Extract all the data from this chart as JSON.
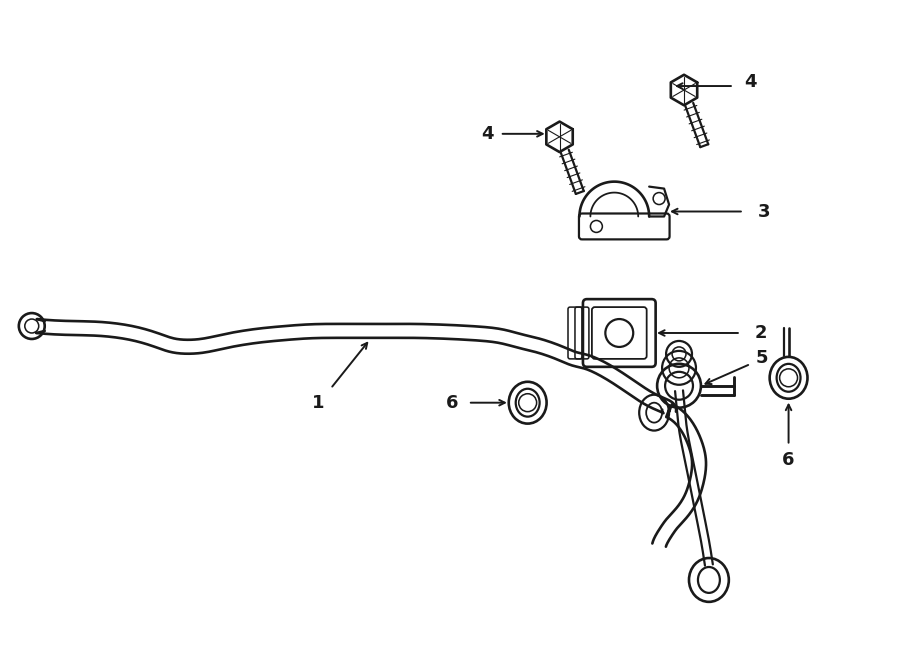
{
  "bg_color": "#ffffff",
  "line_color": "#1a1a1a",
  "lw": 1.6,
  "label_fontsize": 13,
  "figsize": [
    9.0,
    6.61
  ],
  "dpi": 100,
  "xlim": [
    0,
    900
  ],
  "ylim": [
    0,
    661
  ]
}
